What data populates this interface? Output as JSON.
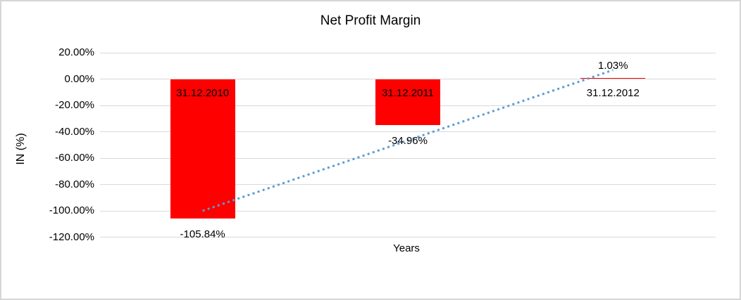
{
  "chart_data": {
    "type": "bar",
    "title": "Net Profit Margin",
    "xlabel": "Years",
    "ylabel": "IN (%)",
    "categories": [
      "31.12.2010",
      "31.12.2011",
      "31.12.2012"
    ],
    "values": [
      -105.84,
      -34.96,
      1.03
    ],
    "value_labels": [
      "-105.84%",
      "-34.96%",
      "1.03%"
    ],
    "ylim": [
      -120,
      20
    ],
    "ytick_step": 20,
    "yticks": [
      {
        "label": "20.00%",
        "value": 20
      },
      {
        "label": "0.00%",
        "value": 0
      },
      {
        "label": "-20.00%",
        "value": -20
      },
      {
        "label": "-40.00%",
        "value": -40
      },
      {
        "label": "-60.00%",
        "value": -60
      },
      {
        "label": "-80.00%",
        "value": -80
      },
      {
        "label": "-100.00%",
        "value": -100
      },
      {
        "label": "-120.00%",
        "value": -120
      }
    ],
    "grid": true,
    "legend": false,
    "bar_color": "#ff0000",
    "trendline": {
      "type": "linear",
      "style": "dotted",
      "color": "#5b9bd5"
    }
  }
}
